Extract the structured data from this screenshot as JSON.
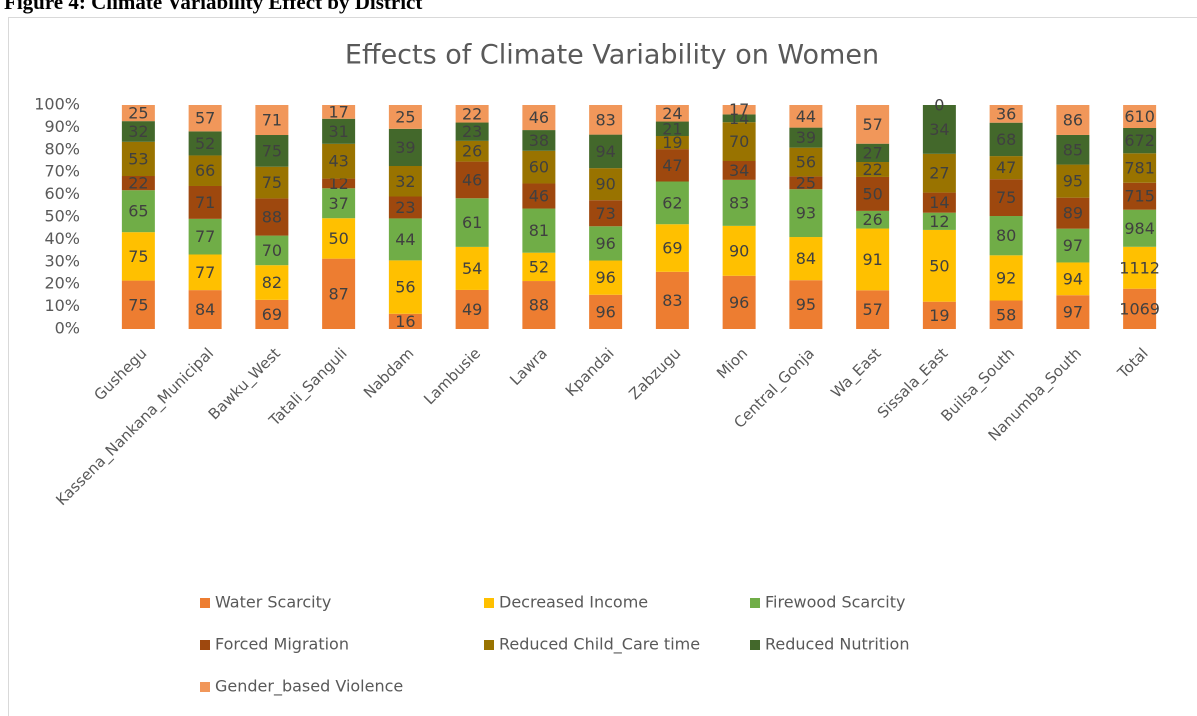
{
  "figure_caption": "Figure 4: Climate Variability Effect by District",
  "chart_data": {
    "type": "stacked_percent_bar",
    "title": "Effects of Climate Variability on Women",
    "categories": [
      "Gushegu",
      "Kassena_Nankana_Municipal",
      "Bawku_West",
      "Tatali_Sanguli",
      "Nabdam",
      "Lambusie",
      "Lawra",
      "Kpandai",
      "Zabzugu",
      "Mion",
      "Central_Gonja",
      "Wa_East",
      "Sissala_East",
      "Builsa_South",
      "Nanumba_South",
      "Total"
    ],
    "series": [
      {
        "name": "Water Scarcity",
        "color": "#ED7D31",
        "values": [
          75,
          84,
          69,
          87,
          16,
          49,
          88,
          96,
          83,
          96,
          95,
          57,
          19,
          58,
          97,
          1069
        ]
      },
      {
        "name": "Decreased Income",
        "color": "#FFC000",
        "values": [
          75,
          77,
          82,
          50,
          56,
          54,
          52,
          96,
          69,
          90,
          84,
          91,
          50,
          92,
          94,
          1112
        ]
      },
      {
        "name": "Firewood Scarcity",
        "color": "#70AD47",
        "values": [
          65,
          77,
          70,
          37,
          44,
          61,
          81,
          96,
          62,
          83,
          93,
          26,
          12,
          80,
          97,
          984
        ]
      },
      {
        "name": "Forced Migration",
        "color": "#9E480E",
        "values": [
          22,
          71,
          88,
          12,
          23,
          46,
          46,
          73,
          47,
          34,
          25,
          50,
          14,
          75,
          89,
          715
        ]
      },
      {
        "name": "Reduced Child_Care time",
        "color": "#997300",
        "values": [
          53,
          66,
          75,
          43,
          32,
          26,
          60,
          90,
          19,
          70,
          56,
          22,
          27,
          47,
          95,
          781
        ]
      },
      {
        "name": "Reduced Nutrition",
        "color": "#43682B",
        "values": [
          32,
          52,
          75,
          31,
          39,
          23,
          38,
          94,
          21,
          14,
          39,
          27,
          34,
          68,
          85,
          672
        ]
      },
      {
        "name": "Gender_based Violence",
        "color": "#F1975A",
        "values": [
          25,
          57,
          71,
          17,
          25,
          22,
          46,
          83,
          24,
          17,
          44,
          57,
          0,
          36,
          86,
          610
        ]
      }
    ],
    "ylim": [
      0,
      100
    ],
    "yticks": [
      {
        "value": 0,
        "label": "0%"
      },
      {
        "value": 10,
        "label": "10%"
      },
      {
        "value": 20,
        "label": "20%"
      },
      {
        "value": 30,
        "label": "30%"
      },
      {
        "value": 40,
        "label": "40%"
      },
      {
        "value": 50,
        "label": "50%"
      },
      {
        "value": 60,
        "label": "60%"
      },
      {
        "value": 70,
        "label": "70%"
      },
      {
        "value": 80,
        "label": "80%"
      },
      {
        "value": 90,
        "label": "90%"
      },
      {
        "value": 100,
        "label": "100%"
      }
    ],
    "grid": false
  }
}
